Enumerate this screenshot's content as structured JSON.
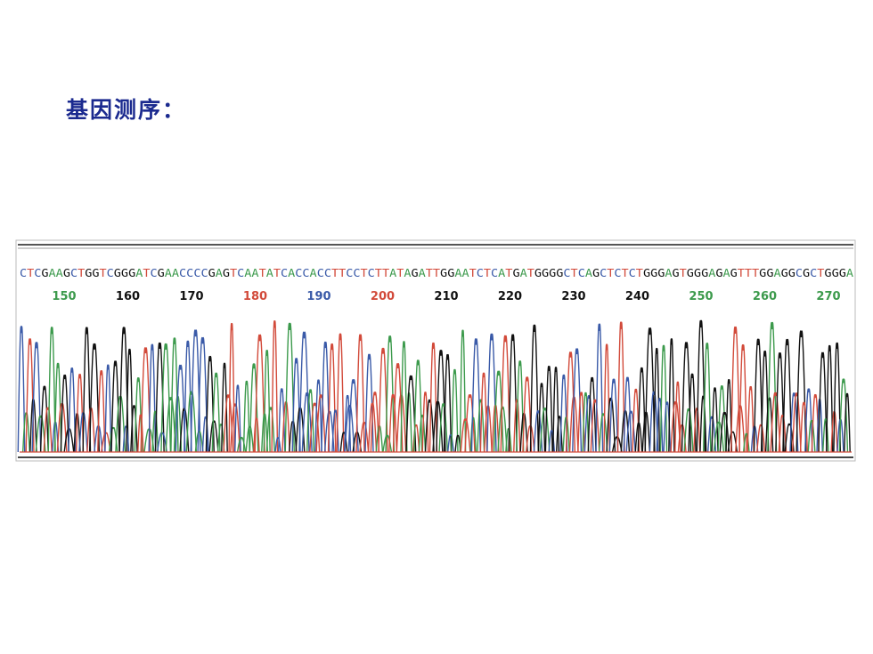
{
  "title": "基因测序：",
  "chromatogram": {
    "sequence": "CTCGAAGCTGGTCGGGATCGAACCCCGAGTCAATATCACCACCTTCCTCTTATAGATTGGAATCTCATGATGGGGCTCAGCTCTCTGGGAGTGGGAGAGTTTGGAGGCGCTGGGA",
    "positions": [
      {
        "label": "150",
        "color": "#3c9a4c"
      },
      {
        "label": "160",
        "color": "#111111"
      },
      {
        "label": "170",
        "color": "#111111"
      },
      {
        "label": "180",
        "color": "#d24a3a"
      },
      {
        "label": "190",
        "color": "#3a5aa8"
      },
      {
        "label": "200",
        "color": "#d24a3a"
      },
      {
        "label": "210",
        "color": "#111111"
      },
      {
        "label": "220",
        "color": "#111111"
      },
      {
        "label": "230",
        "color": "#111111"
      },
      {
        "label": "240",
        "color": "#111111"
      },
      {
        "label": "250",
        "color": "#3c9a4c"
      },
      {
        "label": "260",
        "color": "#3c9a4c"
      },
      {
        "label": "270",
        "color": "#3c9a4c"
      }
    ]
  }
}
